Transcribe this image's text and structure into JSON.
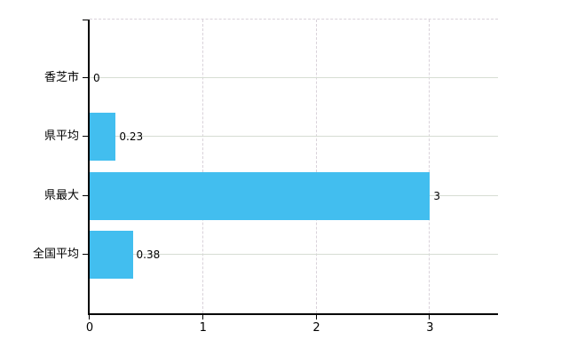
{
  "chart_data": {
    "type": "bar",
    "orientation": "horizontal",
    "categories": [
      "香芝市",
      "県平均",
      "県最大",
      "全国平均"
    ],
    "values": [
      0,
      0.23,
      3,
      0.38
    ],
    "value_labels": [
      "0",
      "0.23",
      "3",
      "0.38"
    ],
    "x_ticks": [
      0,
      1,
      2,
      3
    ],
    "x_tick_labels": [
      "0",
      "1",
      "2",
      "3"
    ],
    "xlim": [
      0,
      3.6
    ],
    "grid": true,
    "legend": "none",
    "xlabel": "",
    "ylabel": "",
    "colors": {
      "bar": "#42BEEF",
      "axis": "#000000",
      "grid_vertical": "#d9d2da",
      "grid_horizontal": "#d6ddd3",
      "text": "#000000"
    }
  }
}
